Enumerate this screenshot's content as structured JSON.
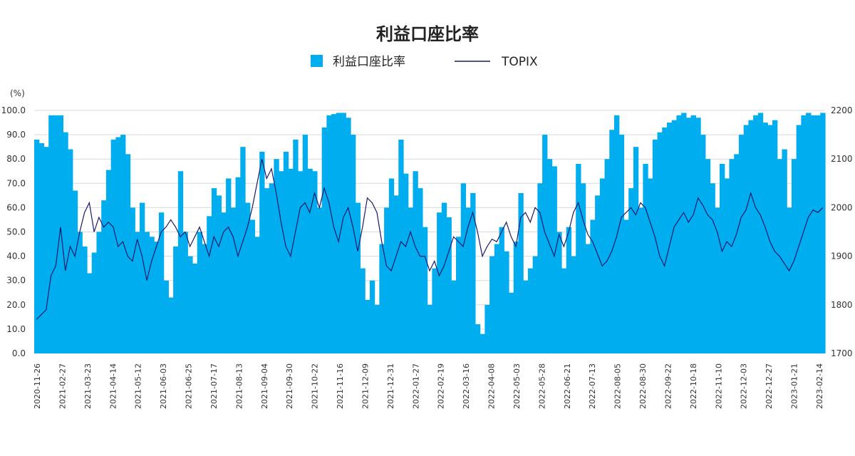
{
  "chart_data": {
    "type": "bar+line",
    "title": "利益口座比率",
    "y_left_unit": "(%)",
    "y_left_ticks": [
      "0.0",
      "10.0",
      "20.0",
      "30.0",
      "40.0",
      "50.0",
      "60.0",
      "70.0",
      "80.0",
      "90.0",
      "100.0"
    ],
    "y_left_range": [
      0,
      100
    ],
    "y_right_ticks": [
      "1700",
      "1800",
      "1900",
      "2000",
      "2100",
      "2200"
    ],
    "y_right_range": [
      1700,
      2200
    ],
    "grid": "horizontal",
    "legend_position": "top-center",
    "colors": {
      "bar": "#00aeef",
      "line": "#1a1a6e",
      "grid": "#d9d9d9"
    },
    "x_ticks": [
      "2020-11-26",
      "2021-02-27",
      "2021-03-23",
      "2021-04-14",
      "2021-05-12",
      "2021-06-03",
      "2021-06-25",
      "2021-07-17",
      "2021-08-13",
      "2021-09-04",
      "2021-09-30",
      "2021-10-22",
      "2021-11-16",
      "2021-12-09",
      "2021-12-31",
      "2022-01-27",
      "2022-02-19",
      "2022-03-16",
      "2022-04-08",
      "2022-05-03",
      "2022-05-28",
      "2022-06-21",
      "2022-07-13",
      "2022-08-05",
      "2022-08-30",
      "2022-09-22",
      "2022-10-18",
      "2022-11-10",
      "2022-12-03",
      "2022-12-27",
      "2023-01-21",
      "2023-02-14"
    ],
    "series": [
      {
        "name": "利益口座比率",
        "kind": "bar",
        "axis": "left",
        "anchors": [
          [
            0,
            88
          ],
          [
            2,
            85
          ],
          [
            3,
            98
          ],
          [
            5,
            98
          ],
          [
            7,
            84
          ],
          [
            9,
            50
          ],
          [
            10,
            44
          ],
          [
            11,
            33
          ],
          [
            13,
            50
          ],
          [
            14,
            63
          ],
          [
            16,
            88
          ],
          [
            18,
            90
          ],
          [
            19,
            82
          ],
          [
            20,
            60
          ],
          [
            21,
            50
          ],
          [
            22,
            62
          ],
          [
            23,
            50
          ],
          [
            24,
            48
          ],
          [
            25,
            46
          ],
          [
            26,
            58
          ],
          [
            27,
            30
          ],
          [
            28,
            23
          ],
          [
            29,
            44
          ],
          [
            30,
            75
          ],
          [
            31,
            50
          ],
          [
            32,
            40
          ],
          [
            33,
            37
          ],
          [
            34,
            50
          ],
          [
            35,
            45
          ],
          [
            37,
            68
          ],
          [
            38,
            65
          ],
          [
            39,
            58
          ],
          [
            40,
            72
          ],
          [
            41,
            60
          ],
          [
            43,
            85
          ],
          [
            44,
            62
          ],
          [
            46,
            48
          ],
          [
            47,
            83
          ],
          [
            48,
            68
          ],
          [
            49,
            70
          ],
          [
            50,
            80
          ],
          [
            51,
            75
          ],
          [
            52,
            83
          ],
          [
            53,
            76
          ],
          [
            54,
            88
          ],
          [
            55,
            75
          ],
          [
            56,
            90
          ],
          [
            57,
            76
          ],
          [
            58,
            75
          ],
          [
            59,
            60
          ],
          [
            60,
            93
          ],
          [
            61,
            98
          ],
          [
            63,
            99
          ],
          [
            64,
            99
          ],
          [
            65,
            97
          ],
          [
            66,
            90
          ],
          [
            67,
            62
          ],
          [
            68,
            35
          ],
          [
            69,
            22
          ],
          [
            70,
            30
          ],
          [
            71,
            20
          ],
          [
            72,
            45
          ],
          [
            73,
            60
          ],
          [
            74,
            72
          ],
          [
            75,
            65
          ],
          [
            76,
            88
          ],
          [
            77,
            74
          ],
          [
            78,
            60
          ],
          [
            79,
            75
          ],
          [
            80,
            68
          ],
          [
            81,
            52
          ],
          [
            82,
            20
          ],
          [
            83,
            35
          ],
          [
            84,
            58
          ],
          [
            85,
            62
          ],
          [
            86,
            56
          ],
          [
            87,
            30
          ],
          [
            88,
            48
          ],
          [
            89,
            70
          ],
          [
            90,
            60
          ],
          [
            91,
            66
          ],
          [
            92,
            12
          ],
          [
            93,
            8
          ],
          [
            94,
            20
          ],
          [
            95,
            40
          ],
          [
            96,
            45
          ],
          [
            97,
            52
          ],
          [
            98,
            42
          ],
          [
            99,
            25
          ],
          [
            100,
            46
          ],
          [
            101,
            66
          ],
          [
            102,
            30
          ],
          [
            103,
            35
          ],
          [
            104,
            40
          ],
          [
            105,
            70
          ],
          [
            106,
            90
          ],
          [
            107,
            80
          ],
          [
            108,
            77
          ],
          [
            109,
            50
          ],
          [
            110,
            35
          ],
          [
            111,
            52
          ],
          [
            112,
            40
          ],
          [
            113,
            78
          ],
          [
            114,
            70
          ],
          [
            115,
            45
          ],
          [
            116,
            55
          ],
          [
            117,
            65
          ],
          [
            118,
            72
          ],
          [
            119,
            80
          ],
          [
            120,
            92
          ],
          [
            121,
            98
          ],
          [
            122,
            90
          ],
          [
            123,
            55
          ],
          [
            124,
            68
          ],
          [
            125,
            85
          ],
          [
            126,
            60
          ],
          [
            127,
            78
          ],
          [
            128,
            72
          ],
          [
            129,
            88
          ],
          [
            130,
            91
          ],
          [
            131,
            93
          ],
          [
            132,
            95
          ],
          [
            133,
            96
          ],
          [
            134,
            98
          ],
          [
            135,
            99
          ],
          [
            136,
            97
          ],
          [
            137,
            98
          ],
          [
            138,
            97
          ],
          [
            139,
            90
          ],
          [
            140,
            80
          ],
          [
            141,
            70
          ],
          [
            142,
            60
          ],
          [
            143,
            78
          ],
          [
            144,
            72
          ],
          [
            145,
            80
          ],
          [
            146,
            82
          ],
          [
            147,
            90
          ],
          [
            148,
            94
          ],
          [
            149,
            96
          ],
          [
            150,
            98
          ],
          [
            151,
            99
          ],
          [
            152,
            95
          ],
          [
            153,
            94
          ],
          [
            154,
            96
          ],
          [
            155,
            80
          ],
          [
            156,
            84
          ],
          [
            157,
            60
          ],
          [
            158,
            80
          ],
          [
            159,
            94
          ],
          [
            160,
            98
          ],
          [
            161,
            99
          ],
          [
            162,
            98
          ],
          [
            163,
            98
          ],
          [
            164,
            99
          ]
        ],
        "count": 165
      },
      {
        "name": "TOPIX",
        "kind": "line",
        "axis": "right",
        "anchors": [
          [
            0,
            1770
          ],
          [
            2,
            1790
          ],
          [
            3,
            1860
          ],
          [
            4,
            1880
          ],
          [
            5,
            1960
          ],
          [
            6,
            1870
          ],
          [
            7,
            1920
          ],
          [
            8,
            1900
          ],
          [
            9,
            1950
          ],
          [
            10,
            1990
          ],
          [
            11,
            2010
          ],
          [
            12,
            1950
          ],
          [
            13,
            1980
          ],
          [
            14,
            1960
          ],
          [
            15,
            1970
          ],
          [
            16,
            1960
          ],
          [
            17,
            1920
          ],
          [
            18,
            1930
          ],
          [
            19,
            1900
          ],
          [
            20,
            1890
          ],
          [
            21,
            1935
          ],
          [
            22,
            1900
          ],
          [
            23,
            1850
          ],
          [
            24,
            1890
          ],
          [
            25,
            1920
          ],
          [
            26,
            1950
          ],
          [
            27,
            1960
          ],
          [
            28,
            1975
          ],
          [
            29,
            1960
          ],
          [
            30,
            1940
          ],
          [
            31,
            1950
          ],
          [
            32,
            1920
          ],
          [
            33,
            1940
          ],
          [
            34,
            1960
          ],
          [
            35,
            1930
          ],
          [
            36,
            1900
          ],
          [
            37,
            1940
          ],
          [
            38,
            1920
          ],
          [
            39,
            1950
          ],
          [
            40,
            1960
          ],
          [
            41,
            1940
          ],
          [
            42,
            1900
          ],
          [
            43,
            1930
          ],
          [
            44,
            1960
          ],
          [
            45,
            2000
          ],
          [
            46,
            2050
          ],
          [
            47,
            2100
          ],
          [
            48,
            2060
          ],
          [
            49,
            2080
          ],
          [
            50,
            2030
          ],
          [
            51,
            1970
          ],
          [
            52,
            1920
          ],
          [
            53,
            1900
          ],
          [
            54,
            1950
          ],
          [
            55,
            2000
          ],
          [
            56,
            2010
          ],
          [
            57,
            1990
          ],
          [
            58,
            2030
          ],
          [
            59,
            2000
          ],
          [
            60,
            2040
          ],
          [
            61,
            2010
          ],
          [
            62,
            1960
          ],
          [
            63,
            1930
          ],
          [
            64,
            1980
          ],
          [
            65,
            2000
          ],
          [
            66,
            1960
          ],
          [
            67,
            1910
          ],
          [
            68,
            1960
          ],
          [
            69,
            2020
          ],
          [
            70,
            2010
          ],
          [
            71,
            1990
          ],
          [
            72,
            1930
          ],
          [
            73,
            1880
          ],
          [
            74,
            1870
          ],
          [
            75,
            1900
          ],
          [
            76,
            1930
          ],
          [
            77,
            1920
          ],
          [
            78,
            1950
          ],
          [
            79,
            1920
          ],
          [
            80,
            1900
          ],
          [
            81,
            1900
          ],
          [
            82,
            1870
          ],
          [
            83,
            1890
          ],
          [
            84,
            1860
          ],
          [
            85,
            1880
          ],
          [
            86,
            1910
          ],
          [
            87,
            1940
          ],
          [
            88,
            1930
          ],
          [
            89,
            1920
          ],
          [
            90,
            1960
          ],
          [
            91,
            1990
          ],
          [
            92,
            1950
          ],
          [
            93,
            1900
          ],
          [
            94,
            1920
          ],
          [
            95,
            1935
          ],
          [
            96,
            1930
          ],
          [
            97,
            1950
          ],
          [
            98,
            1970
          ],
          [
            99,
            1940
          ],
          [
            100,
            1920
          ],
          [
            101,
            1980
          ],
          [
            102,
            1990
          ],
          [
            103,
            1970
          ],
          [
            104,
            2000
          ],
          [
            105,
            1990
          ],
          [
            106,
            1950
          ],
          [
            107,
            1925
          ],
          [
            108,
            1900
          ],
          [
            109,
            1945
          ],
          [
            110,
            1920
          ],
          [
            111,
            1950
          ],
          [
            112,
            1990
          ],
          [
            113,
            2010
          ],
          [
            114,
            1975
          ],
          [
            115,
            1945
          ],
          [
            116,
            1930
          ],
          [
            117,
            1905
          ],
          [
            118,
            1880
          ],
          [
            119,
            1890
          ],
          [
            120,
            1910
          ],
          [
            121,
            1940
          ],
          [
            122,
            1980
          ],
          [
            123,
            1990
          ],
          [
            124,
            2000
          ],
          [
            125,
            1985
          ],
          [
            126,
            2010
          ],
          [
            127,
            2000
          ],
          [
            128,
            1970
          ],
          [
            129,
            1940
          ],
          [
            130,
            1900
          ],
          [
            131,
            1880
          ],
          [
            132,
            1920
          ],
          [
            133,
            1960
          ],
          [
            134,
            1975
          ],
          [
            135,
            1990
          ],
          [
            136,
            1970
          ],
          [
            137,
            1985
          ],
          [
            138,
            2020
          ],
          [
            139,
            2005
          ],
          [
            140,
            1985
          ],
          [
            141,
            1975
          ],
          [
            142,
            1950
          ],
          [
            143,
            1910
          ],
          [
            144,
            1930
          ],
          [
            145,
            1920
          ],
          [
            146,
            1945
          ],
          [
            147,
            1980
          ],
          [
            148,
            1995
          ],
          [
            149,
            2030
          ],
          [
            150,
            2000
          ],
          [
            151,
            1985
          ],
          [
            152,
            1960
          ],
          [
            153,
            1930
          ],
          [
            154,
            1910
          ],
          [
            155,
            1900
          ],
          [
            156,
            1885
          ],
          [
            157,
            1870
          ],
          [
            158,
            1890
          ],
          [
            159,
            1920
          ],
          [
            160,
            1950
          ],
          [
            161,
            1980
          ],
          [
            162,
            1995
          ],
          [
            163,
            1990
          ],
          [
            164,
            2000
          ]
        ],
        "count": 165
      }
    ]
  }
}
